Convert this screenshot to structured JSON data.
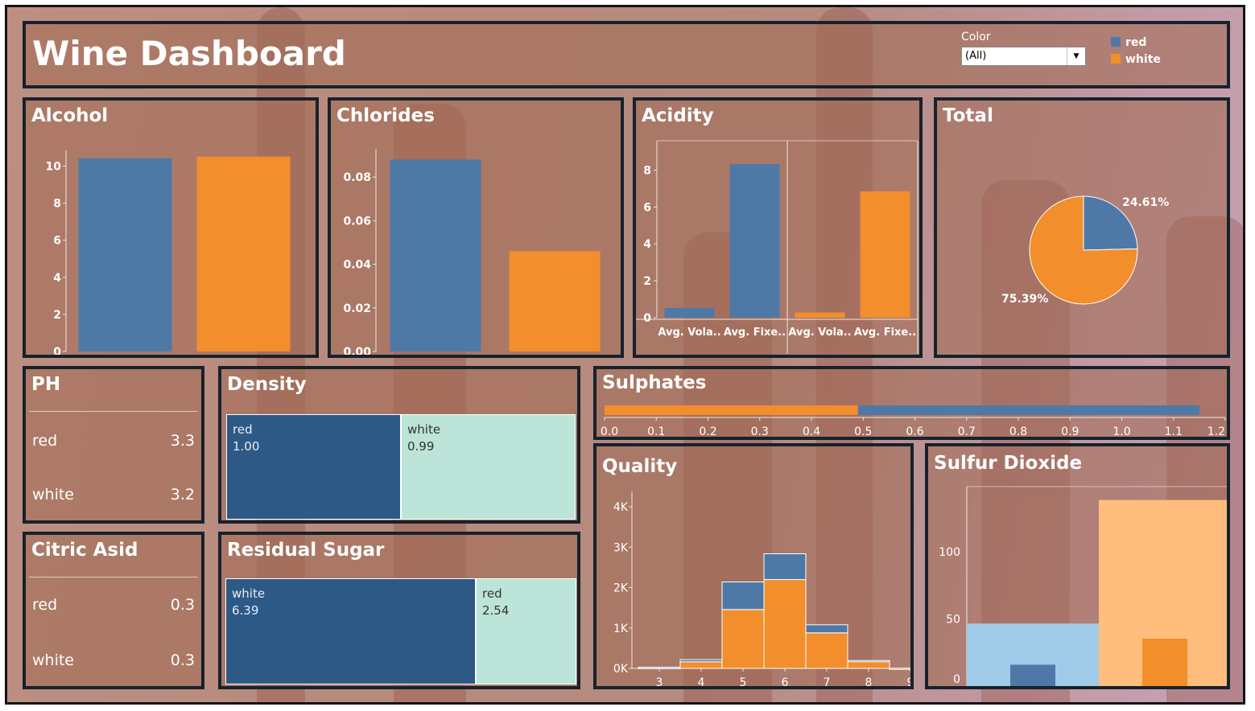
{
  "title": "Wine Dashboard",
  "filter": {
    "label": "Color",
    "value": "(All)"
  },
  "legend": [
    {
      "name": "red",
      "color": "#4e79a7"
    },
    {
      "name": "white",
      "color": "#f28e2b"
    }
  ],
  "colors": {
    "red": "#4e79a7",
    "white": "#f28e2b",
    "dark": "#2d5986",
    "light": "#bce4d8",
    "lightblue": "#a0cbe8",
    "lightorange": "#ffbe7d"
  },
  "panels": {
    "alcohol": "Alcohol",
    "chlorides": "Chlorides",
    "acidity": "Acidity",
    "total": "Total",
    "ph": "PH",
    "density": "Density",
    "sulphates": "Sulphates",
    "citric": "Citric Asid",
    "sugar": "Residual Sugar",
    "quality": "Quality",
    "sulfur": "Sulfur Dioxide"
  },
  "ph": [
    {
      "label": "red",
      "value": "3.3"
    },
    {
      "label": "white",
      "value": "3.2"
    }
  ],
  "citric": [
    {
      "label": "red",
      "value": "0.3"
    },
    {
      "label": "white",
      "value": "0.3"
    }
  ],
  "density": [
    {
      "label": "red",
      "value": "1.00"
    },
    {
      "label": "white",
      "value": "0.99"
    }
  ],
  "sugar": [
    {
      "label": "white",
      "value": "6.39"
    },
    {
      "label": "red",
      "value": "2.54"
    }
  ],
  "chart_data": [
    {
      "id": "alcohol",
      "type": "bar",
      "title": "Alcohol",
      "categories": [
        "red",
        "white"
      ],
      "values": [
        10.42,
        10.51
      ],
      "ylim": [
        0,
        10.5
      ],
      "ticks": [
        0,
        2,
        4,
        6,
        8,
        10
      ]
    },
    {
      "id": "chlorides",
      "type": "bar",
      "title": "Chlorides",
      "categories": [
        "red",
        "white"
      ],
      "values": [
        0.088,
        0.046
      ],
      "ylim": [
        0,
        0.09
      ],
      "ticks": [
        0.0,
        0.02,
        0.04,
        0.06,
        0.08
      ]
    },
    {
      "id": "acidity",
      "type": "bar",
      "title": "Acidity",
      "categories": [
        "Avg. Vola..",
        "Avg. Fixe..",
        "Avg. Vola..",
        "Avg. Fixe.."
      ],
      "groups": [
        "red",
        "red",
        "white",
        "white"
      ],
      "values": [
        0.53,
        8.32,
        0.28,
        6.85
      ],
      "ylim": [
        0,
        8.5
      ],
      "ticks": [
        0,
        2,
        4,
        6,
        8
      ]
    },
    {
      "id": "total",
      "type": "pie",
      "title": "Total",
      "slices": [
        {
          "name": "red",
          "value": 24.61,
          "label": "24.61%"
        },
        {
          "name": "white",
          "value": 75.39,
          "label": "75.39%"
        }
      ]
    },
    {
      "id": "sulphates",
      "type": "bar",
      "title": "Sulphates",
      "orientation": "horizontal",
      "series": [
        {
          "name": "white",
          "value": 0.49
        },
        {
          "name": "red",
          "value": 1.15
        }
      ],
      "xlim": [
        0,
        1.2
      ],
      "ticks": [
        "0.0",
        "0.1",
        "0.2",
        "0.3",
        "0.4",
        "0.5",
        "0.6",
        "0.7",
        "0.8",
        "0.9",
        "1.0",
        "1.1",
        "1.2"
      ]
    },
    {
      "id": "quality",
      "type": "bar",
      "title": "Quality",
      "stacked": true,
      "categories": [
        "3",
        "4",
        "5",
        "6",
        "7",
        "8",
        "9"
      ],
      "series": [
        {
          "name": "white",
          "values": [
            20,
            163,
            1457,
            2198,
            880,
            175,
            5
          ]
        },
        {
          "name": "red",
          "values": [
            10,
            53,
            681,
            638,
            199,
            18,
            0
          ]
        }
      ],
      "ylim": [
        0,
        4100
      ],
      "ticks": [
        {
          "v": 0,
          "label": "0K"
        },
        {
          "v": 1000,
          "label": "1K"
        },
        {
          "v": 2000,
          "label": "2K"
        },
        {
          "v": 3000,
          "label": "3K"
        },
        {
          "v": 4000,
          "label": "4K"
        }
      ]
    },
    {
      "id": "sulfur",
      "type": "bar",
      "title": "Sulfur Dioxide",
      "categories": [
        "red",
        "white"
      ],
      "series": [
        {
          "name": "total",
          "values": [
            46.5,
            138.4
          ]
        },
        {
          "name": "free",
          "values": [
            15.9,
            35.3
          ]
        }
      ],
      "ylim": [
        0,
        140
      ],
      "ticks": [
        0,
        50,
        100
      ]
    }
  ]
}
